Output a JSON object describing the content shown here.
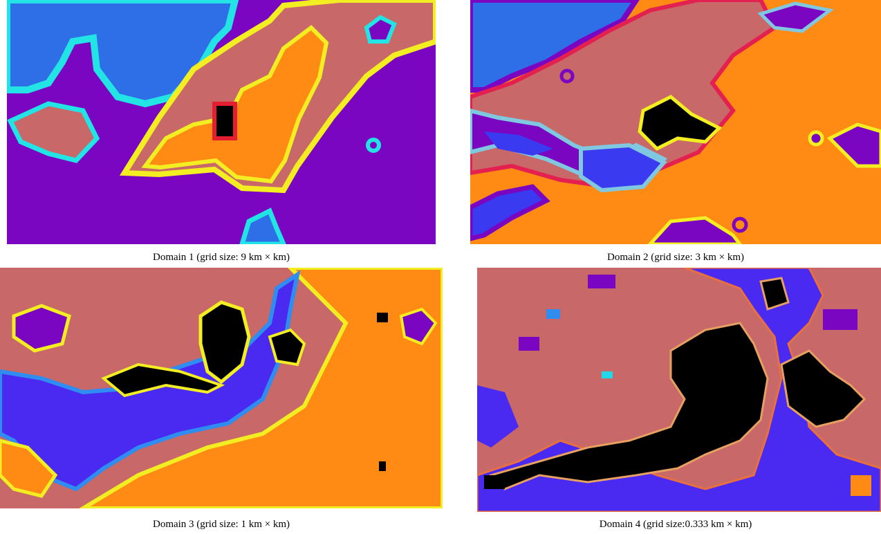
{
  "panels": [
    {
      "caption": "Domain 1 (grid size: 9 km × km)"
    },
    {
      "caption": "Domain 2 (grid size: 3 km × km)"
    },
    {
      "caption": "Domain 3 (grid size: 1 km × km)"
    },
    {
      "caption": "Domain 4 (grid size:0.333 km × km)"
    }
  ]
}
